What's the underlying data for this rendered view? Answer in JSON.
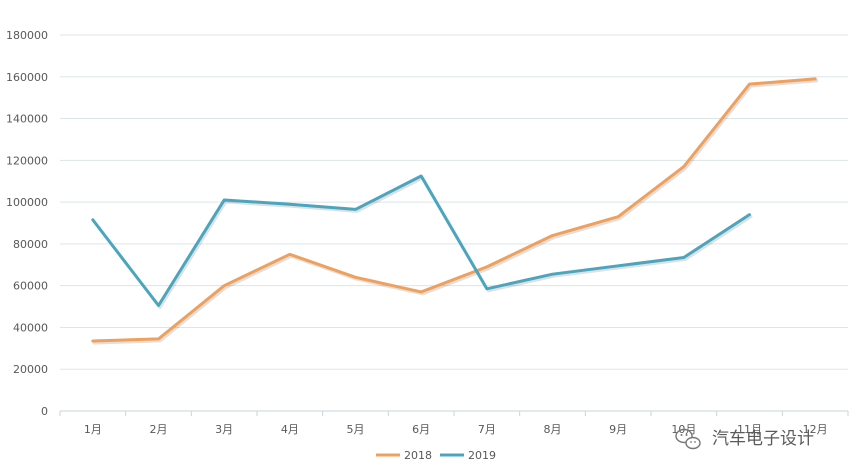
{
  "chart_data": {
    "type": "line",
    "categories": [
      "1月",
      "2月",
      "3月",
      "4月",
      "5月",
      "6月",
      "7月",
      "8月",
      "9月",
      "10月",
      "11月",
      "12月"
    ],
    "series": [
      {
        "name": "2018",
        "color": "#f0a05a",
        "values": [
          33500,
          34500,
          60000,
          75000,
          64000,
          57000,
          69000,
          84000,
          93000,
          117000,
          156500,
          159000
        ]
      },
      {
        "name": "2019",
        "color": "#4aa5bf",
        "values": [
          91500,
          50500,
          101000,
          99000,
          96500,
          112500,
          58500,
          65500,
          69500,
          73500,
          94000,
          null
        ]
      }
    ],
    "yticks": [
      "0",
      "20000",
      "40000",
      "60000",
      "80000",
      "100000",
      "120000",
      "140000",
      "160000",
      "180000"
    ],
    "ylim": [
      0,
      180000
    ],
    "grid": true,
    "legend": "bottom",
    "title": "",
    "xlabel": "",
    "ylabel": ""
  },
  "watermark": {
    "text": "汽车电子设计",
    "icon": "wechat-icon"
  }
}
